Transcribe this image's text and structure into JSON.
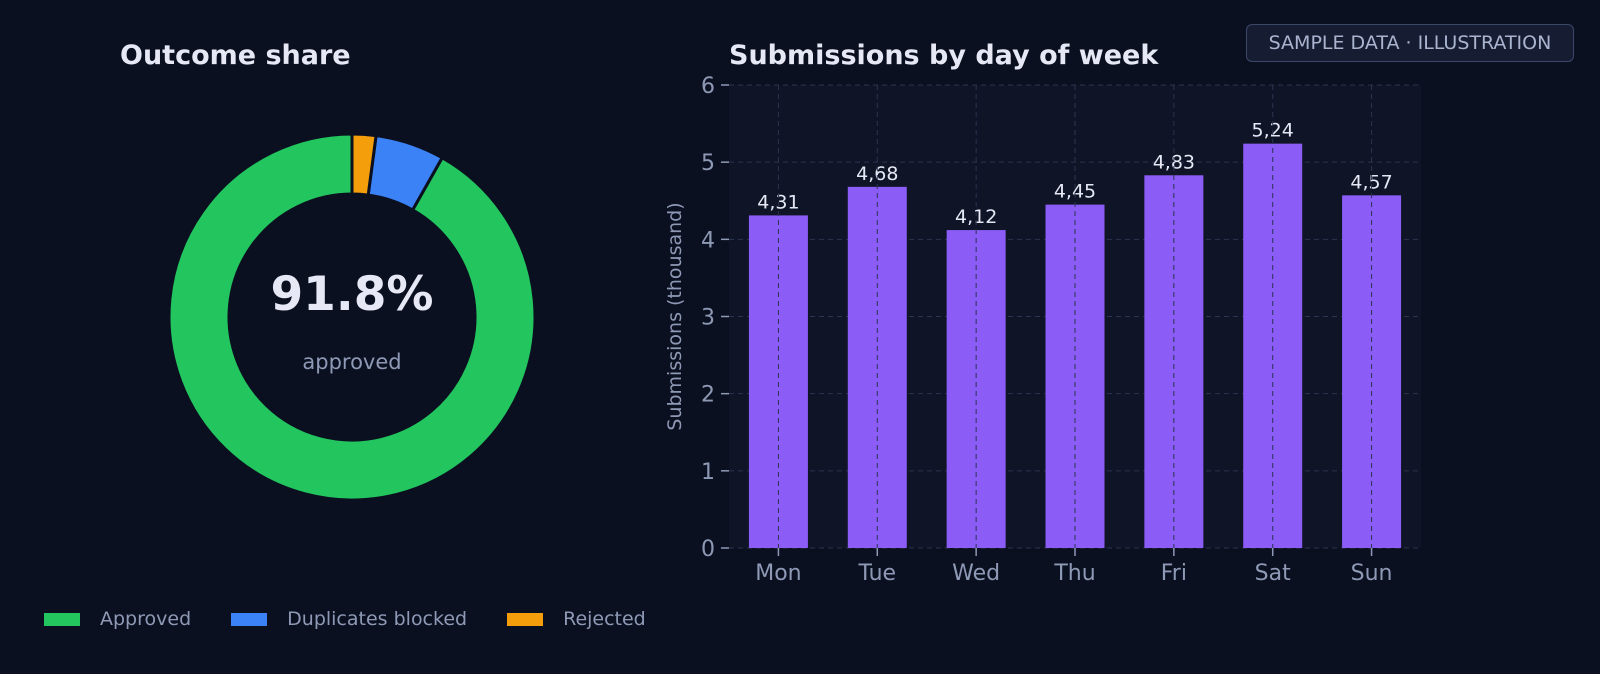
{
  "badge": "SAMPLE DATA · ILLUSTRATION",
  "colors": {
    "background": "#0b1020",
    "plot_background": "#0f1526",
    "approved": "#22c55e",
    "duplicates_blocked": "#3b82f6",
    "rejected": "#f59e0b",
    "bar": "#8b5cf6"
  },
  "chart_data": [
    {
      "type": "pie",
      "style": "donut",
      "title": "Outcome share",
      "center_value": "91.8%",
      "center_label": "approved",
      "legend_position": "bottom",
      "slices": [
        {
          "label": "Approved",
          "value": 91.8,
          "color": "#22c55e"
        },
        {
          "label": "Duplicates blocked",
          "value": 6.1,
          "color": "#3b82f6"
        },
        {
          "label": "Rejected",
          "value": 2.1,
          "color": "#f59e0b"
        }
      ]
    },
    {
      "type": "bar",
      "title": "Submissions by day of week",
      "categories": [
        "Mon",
        "Tue",
        "Wed",
        "Thu",
        "Fri",
        "Sat",
        "Sun"
      ],
      "values": [
        4.31,
        4.68,
        4.12,
        4.45,
        4.83,
        5.24,
        4.57
      ],
      "data_labels": [
        "4,31",
        "4,68",
        "4,12",
        "4,45",
        "4,83",
        "5,24",
        "4,57"
      ],
      "xlabel": "",
      "ylabel": "Submissions (thousand)",
      "ylim": [
        0,
        6
      ],
      "yticks": [
        0,
        1,
        2,
        3,
        4,
        5,
        6
      ],
      "grid": true,
      "bar_color": "#8b5cf6"
    }
  ]
}
